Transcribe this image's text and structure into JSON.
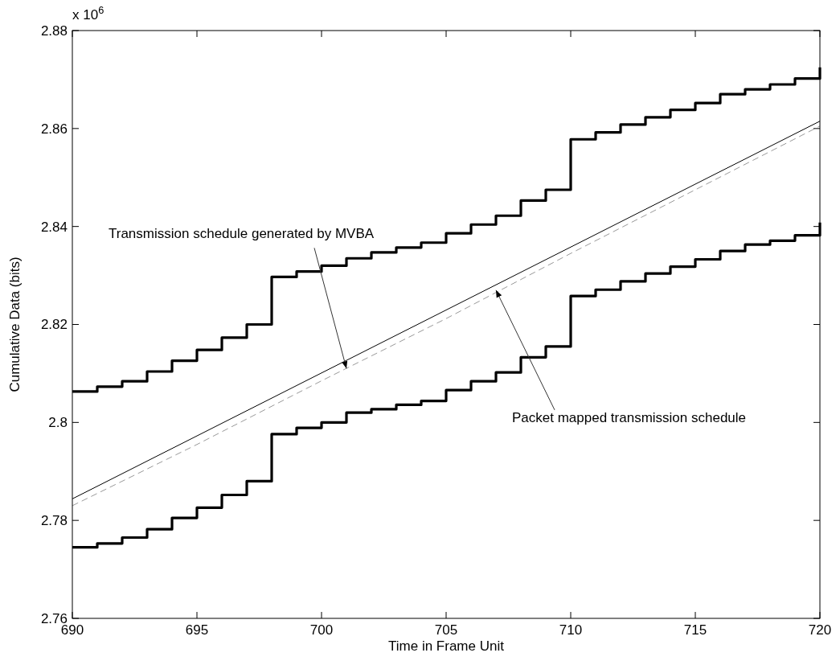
{
  "chart_data": {
    "type": "step",
    "xlabel": "Time in Frame Unit",
    "ylabel": "Cumulative Data (bits)",
    "annotations": [
      "x 10$^{6}$",
      {
        "text": "Transmission schedule generated by MVBA",
        "x": 701,
        "y": 2.811
      },
      {
        "text": "Packet mapped transmission schedule",
        "x": 707,
        "y": 2.827
      }
    ],
    "xlim": [
      690,
      720
    ],
    "xticks": [
      690,
      695,
      700,
      705,
      710,
      715,
      720
    ],
    "ylim": [
      2.76,
      2.88
    ],
    "yticks": [
      2.76,
      2.78,
      2.8,
      2.82,
      2.84,
      2.86,
      2.88
    ],
    "grid": false,
    "series": [
      {
        "color": "#000000",
        "x": [
          690,
          691,
          692,
          693,
          694,
          695,
          696,
          697,
          698,
          699,
          700,
          701,
          702,
          703,
          704,
          705,
          706,
          707,
          708,
          709,
          710,
          711,
          712,
          713,
          714,
          715,
          716,
          717,
          718,
          719,
          720
        ],
        "values": [
          2.8063,
          2.8073,
          2.8084,
          2.8104,
          2.8126,
          2.8148,
          2.8173,
          2.82,
          2.8297,
          2.8308,
          2.832,
          2.8335,
          2.8347,
          2.8357,
          2.8367,
          2.8386,
          2.8404,
          2.8422,
          2.8453,
          2.8475,
          2.8578,
          2.8592,
          2.8608,
          2.8623,
          2.8638,
          2.8652,
          2.867,
          2.868,
          2.869,
          2.8702,
          2.8725
        ]
      },
      {
        "color": "#000000",
        "x": [
          690,
          691,
          692,
          693,
          694,
          695,
          696,
          697,
          698,
          699,
          700,
          701,
          702,
          703,
          704,
          705,
          706,
          707,
          708,
          709,
          710,
          711,
          712,
          713,
          714,
          715,
          716,
          717,
          718,
          719,
          720
        ],
        "values": [
          2.7745,
          2.7753,
          2.7765,
          2.7782,
          2.7805,
          2.7826,
          2.7852,
          2.788,
          2.7976,
          2.7989,
          2.8,
          2.802,
          2.8027,
          2.8036,
          2.8044,
          2.8066,
          2.8084,
          2.8102,
          2.8133,
          2.8155,
          2.8258,
          2.8271,
          2.8288,
          2.8304,
          2.8318,
          2.8333,
          2.835,
          2.8363,
          2.8371,
          2.8382,
          2.8408
        ]
      },
      {
        "type": "line",
        "color": "#000000",
        "line_style": "solid",
        "x": [
          690,
          720
        ],
        "values": [
          2.7844,
          2.8615
        ]
      },
      {
        "type": "line",
        "color": "#999999",
        "line_style": "dashed",
        "x": [
          690,
          695,
          700,
          705,
          710,
          715,
          720
        ],
        "values": [
          2.783,
          2.7955,
          2.8085,
          2.8212,
          2.8345,
          2.8475,
          2.8605
        ]
      }
    ]
  }
}
